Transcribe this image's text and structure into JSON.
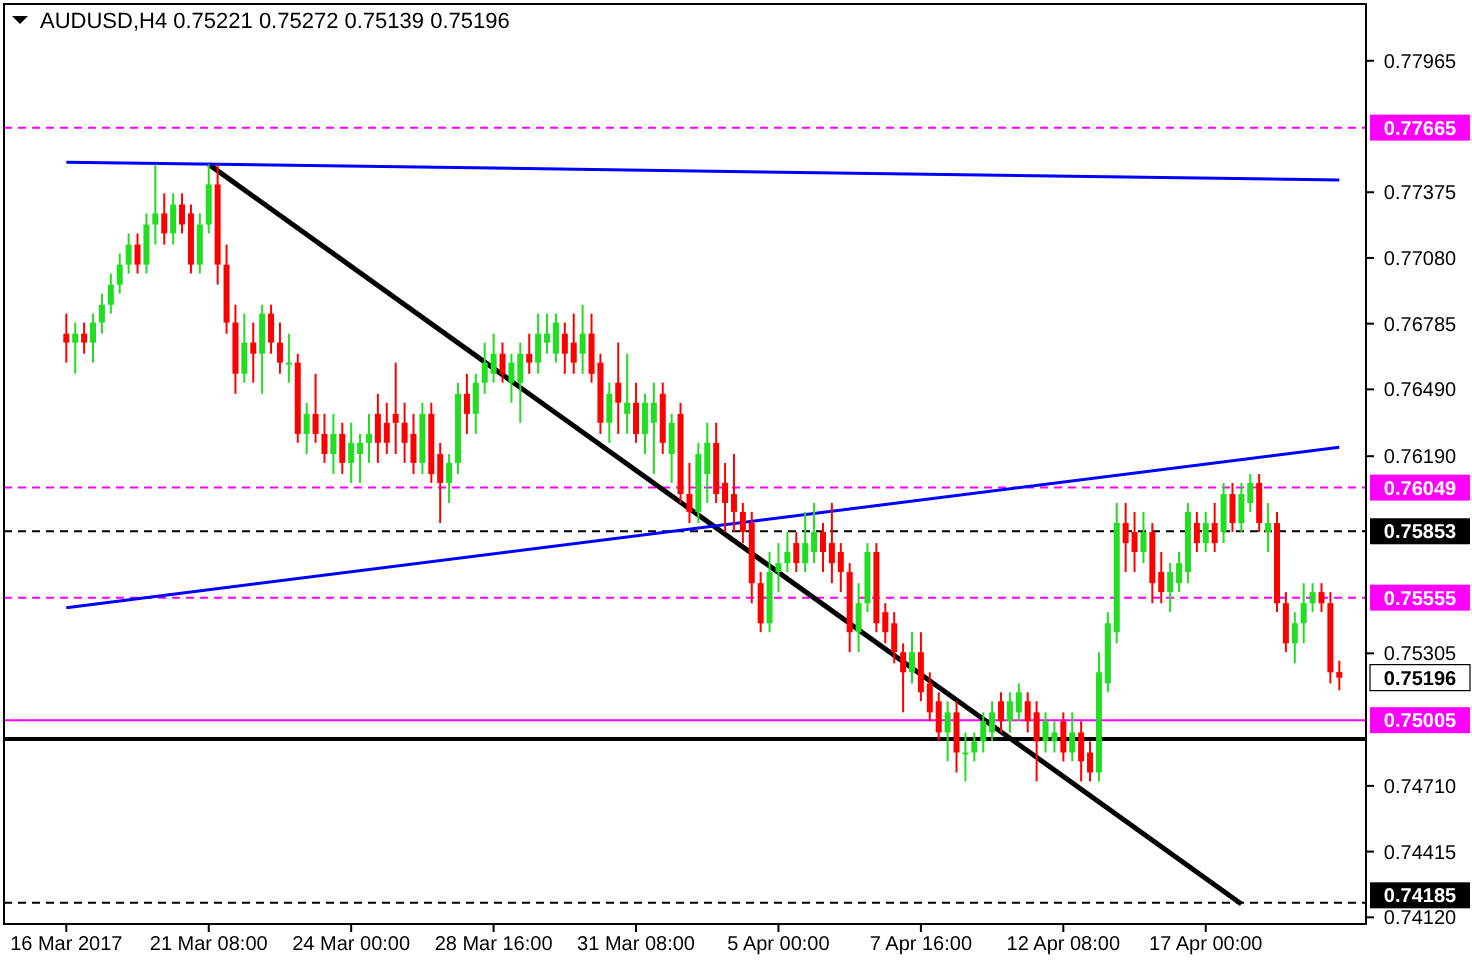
{
  "chart_data": {
    "type": "candlestick",
    "title": "AUDUSD,H4 0.75221 0.75272 0.75139 0.75196",
    "categories": [
      "16 Mar 2017",
      null,
      null,
      null,
      null,
      null,
      null,
      null,
      null,
      null,
      null,
      null,
      null,
      null,
      null,
      null,
      "21 Mar 08:00",
      null,
      null,
      null,
      null,
      null,
      null,
      null,
      null,
      null,
      null,
      null,
      null,
      null,
      null,
      null,
      "24 Mar 00:00",
      null,
      null,
      null,
      null,
      null,
      null,
      null,
      null,
      null,
      null,
      null,
      null,
      null,
      null,
      null,
      "28 Mar 16:00",
      null,
      null,
      null,
      null,
      null,
      null,
      null,
      null,
      null,
      null,
      null,
      null,
      null,
      null,
      null,
      "31 Mar 08:00",
      null,
      null,
      null,
      null,
      null,
      null,
      null,
      null,
      null,
      null,
      null,
      null,
      null,
      null,
      null,
      "5 Apr 00:00",
      null,
      null,
      null,
      null,
      null,
      null,
      null,
      null,
      null,
      null,
      null,
      null,
      null,
      null,
      null,
      "7 Apr 16:00",
      null,
      null,
      null,
      null,
      null,
      null,
      null,
      null,
      null,
      null,
      null,
      null,
      null,
      null,
      null,
      "12 Apr 08:00",
      null,
      null,
      null,
      null,
      null,
      null,
      null,
      null,
      null,
      null,
      null,
      null,
      null,
      null,
      null,
      "17 Apr 00:00",
      null,
      null,
      null,
      null,
      null,
      null,
      null,
      null,
      null,
      null,
      null,
      null,
      null,
      null,
      null
    ],
    "ohlc": [
      [
        0.7674,
        0.7683,
        0.7661,
        0.767
      ],
      [
        0.767,
        0.7679,
        0.7656,
        0.7674
      ],
      [
        0.7674,
        0.7679,
        0.7665,
        0.767
      ],
      [
        0.767,
        0.7683,
        0.7661,
        0.7679
      ],
      [
        0.7679,
        0.7692,
        0.7674,
        0.7687
      ],
      [
        0.7687,
        0.7701,
        0.7683,
        0.7696
      ],
      [
        0.7696,
        0.771,
        0.7692,
        0.7705
      ],
      [
        0.7705,
        0.7719,
        0.7701,
        0.7714
      ],
      [
        0.7714,
        0.7719,
        0.7701,
        0.7705
      ],
      [
        0.7705,
        0.7728,
        0.7701,
        0.7723
      ],
      [
        0.7723,
        0.775,
        0.7714,
        0.7728
      ],
      [
        0.7728,
        0.7737,
        0.7714,
        0.7719
      ],
      [
        0.7719,
        0.7737,
        0.7714,
        0.7732
      ],
      [
        0.7732,
        0.7737,
        0.7719,
        0.7723
      ],
      [
        0.7728,
        0.7732,
        0.7701,
        0.7705
      ],
      [
        0.7705,
        0.7728,
        0.7701,
        0.7723
      ],
      [
        0.7723,
        0.775,
        0.7719,
        0.7741
      ],
      [
        0.7741,
        0.775,
        0.7696,
        0.7705
      ],
      [
        0.7705,
        0.7714,
        0.7674,
        0.7679
      ],
      [
        0.7679,
        0.7687,
        0.7647,
        0.7656
      ],
      [
        0.7656,
        0.7683,
        0.7652,
        0.767
      ],
      [
        0.767,
        0.7679,
        0.7652,
        0.7665
      ],
      [
        0.7665,
        0.7687,
        0.7647,
        0.7683
      ],
      [
        0.7683,
        0.7687,
        0.7665,
        0.767
      ],
      [
        0.767,
        0.7679,
        0.7656,
        0.7661
      ],
      [
        0.7661,
        0.7674,
        0.7652,
        0.7661
      ],
      [
        0.7661,
        0.7665,
        0.7625,
        0.7629
      ],
      [
        0.7629,
        0.7643,
        0.762,
        0.7638
      ],
      [
        0.7638,
        0.7656,
        0.7625,
        0.7629
      ],
      [
        0.7629,
        0.7638,
        0.7616,
        0.762
      ],
      [
        0.762,
        0.7638,
        0.7611,
        0.7629
      ],
      [
        0.7629,
        0.7634,
        0.7611,
        0.7616
      ],
      [
        0.7616,
        0.7634,
        0.7607,
        0.7625
      ],
      [
        0.762,
        0.7629,
        0.7607,
        0.7625
      ],
      [
        0.7625,
        0.7638,
        0.7616,
        0.7629
      ],
      [
        0.7638,
        0.7647,
        0.7616,
        0.7625
      ],
      [
        0.7634,
        0.7643,
        0.762,
        0.7625
      ],
      [
        0.7638,
        0.7661,
        0.762,
        0.7634
      ],
      [
        0.7634,
        0.7643,
        0.7616,
        0.7625
      ],
      [
        0.7629,
        0.7638,
        0.7611,
        0.7616
      ],
      [
        0.7616,
        0.7643,
        0.7611,
        0.7638
      ],
      [
        0.7638,
        0.7643,
        0.7607,
        0.7611
      ],
      [
        0.762,
        0.7625,
        0.7589,
        0.7607
      ],
      [
        0.7607,
        0.762,
        0.7598,
        0.7616
      ],
      [
        0.7616,
        0.7652,
        0.7611,
        0.7647
      ],
      [
        0.7647,
        0.7656,
        0.7629,
        0.7638
      ],
      [
        0.7638,
        0.7656,
        0.7629,
        0.7652
      ],
      [
        0.7652,
        0.767,
        0.7647,
        0.7661
      ],
      [
        0.7656,
        0.7674,
        0.7652,
        0.7665
      ],
      [
        0.7665,
        0.767,
        0.7652,
        0.7656
      ],
      [
        0.7652,
        0.7665,
        0.7643,
        0.7661
      ],
      [
        0.7652,
        0.767,
        0.7634,
        0.7665
      ],
      [
        0.7665,
        0.7674,
        0.7656,
        0.7661
      ],
      [
        0.7661,
        0.7683,
        0.7656,
        0.7674
      ],
      [
        0.767,
        0.7683,
        0.7665,
        0.7674
      ],
      [
        0.7665,
        0.7683,
        0.7661,
        0.7679
      ],
      [
        0.7674,
        0.7679,
        0.7656,
        0.7665
      ],
      [
        0.767,
        0.7683,
        0.7656,
        0.7661
      ],
      [
        0.7665,
        0.7687,
        0.7656,
        0.7674
      ],
      [
        0.7674,
        0.7683,
        0.7652,
        0.7656
      ],
      [
        0.7661,
        0.7665,
        0.7629,
        0.7634
      ],
      [
        0.7634,
        0.7652,
        0.7625,
        0.7647
      ],
      [
        0.7652,
        0.767,
        0.7629,
        0.7643
      ],
      [
        0.7638,
        0.7665,
        0.7629,
        0.7643
      ],
      [
        0.7643,
        0.7652,
        0.7625,
        0.7629
      ],
      [
        0.7629,
        0.7647,
        0.762,
        0.7643
      ],
      [
        0.7634,
        0.7652,
        0.7611,
        0.7643
      ],
      [
        0.7647,
        0.7652,
        0.762,
        0.7625
      ],
      [
        0.762,
        0.7638,
        0.7607,
        0.7634
      ],
      [
        0.7638,
        0.7643,
        0.7598,
        0.7602
      ],
      [
        0.7602,
        0.7616,
        0.7589,
        0.7594
      ],
      [
        0.7594,
        0.7625,
        0.7589,
        0.762
      ],
      [
        0.7611,
        0.7634,
        0.7598,
        0.7625
      ],
      [
        0.7625,
        0.7634,
        0.7598,
        0.7602
      ],
      [
        0.7607,
        0.7616,
        0.7585,
        0.7598
      ],
      [
        0.7602,
        0.762,
        0.7585,
        0.7594
      ],
      [
        0.7594,
        0.7598,
        0.758,
        0.7585
      ],
      [
        0.7589,
        0.7594,
        0.7553,
        0.7562
      ],
      [
        0.7562,
        0.7567,
        0.754,
        0.7544
      ],
      [
        0.7544,
        0.7576,
        0.754,
        0.7567
      ],
      [
        0.7567,
        0.758,
        0.7558,
        0.7571
      ],
      [
        0.7571,
        0.7585,
        0.7567,
        0.7576
      ],
      [
        0.758,
        0.7585,
        0.7567,
        0.7571
      ],
      [
        0.7571,
        0.7594,
        0.7567,
        0.758
      ],
      [
        0.7576,
        0.7598,
        0.7571,
        0.7585
      ],
      [
        0.7585,
        0.7589,
        0.7567,
        0.7576
      ],
      [
        0.758,
        0.7598,
        0.7562,
        0.7571
      ],
      [
        0.7576,
        0.758,
        0.7558,
        0.7567
      ],
      [
        0.7567,
        0.7571,
        0.7531,
        0.754
      ],
      [
        0.754,
        0.7562,
        0.7531,
        0.7553
      ],
      [
        0.7553,
        0.758,
        0.7549,
        0.7576
      ],
      [
        0.7576,
        0.758,
        0.754,
        0.7544
      ],
      [
        0.7549,
        0.7553,
        0.7535,
        0.754
      ],
      [
        0.7544,
        0.7549,
        0.7526,
        0.7531
      ],
      [
        0.7531,
        0.7535,
        0.7504,
        0.7522
      ],
      [
        0.7522,
        0.754,
        0.7517,
        0.7531
      ],
      [
        0.7531,
        0.754,
        0.7509,
        0.7513
      ],
      [
        0.7517,
        0.7522,
        0.75,
        0.7504
      ],
      [
        0.7509,
        0.7513,
        0.7491,
        0.7495
      ],
      [
        0.7495,
        0.7509,
        0.7482,
        0.7504
      ],
      [
        0.7504,
        0.7509,
        0.7477,
        0.7486
      ],
      [
        0.7486,
        0.7495,
        0.7473,
        0.7486
      ],
      [
        0.7486,
        0.7495,
        0.7482,
        0.7491
      ],
      [
        0.7491,
        0.7504,
        0.7486,
        0.75
      ],
      [
        0.7495,
        0.7509,
        0.7491,
        0.7504
      ],
      [
        0.7509,
        0.7513,
        0.7495,
        0.75
      ],
      [
        0.75,
        0.7513,
        0.7495,
        0.7509
      ],
      [
        0.7504,
        0.7517,
        0.75,
        0.7513
      ],
      [
        0.7509,
        0.7513,
        0.7495,
        0.75
      ],
      [
        0.7504,
        0.7509,
        0.7473,
        0.7491
      ],
      [
        0.7491,
        0.7504,
        0.7486,
        0.75
      ],
      [
        0.7491,
        0.75,
        0.7486,
        0.7495
      ],
      [
        0.75,
        0.7504,
        0.7482,
        0.7486
      ],
      [
        0.7486,
        0.7504,
        0.7482,
        0.7495
      ],
      [
        0.7495,
        0.75,
        0.7473,
        0.7482
      ],
      [
        0.7486,
        0.7491,
        0.7473,
        0.7477
      ],
      [
        0.7477,
        0.7531,
        0.7473,
        0.7522
      ],
      [
        0.7517,
        0.7549,
        0.7513,
        0.7544
      ],
      [
        0.754,
        0.7598,
        0.7535,
        0.7589
      ],
      [
        0.7589,
        0.7598,
        0.7567,
        0.758
      ],
      [
        0.7585,
        0.7594,
        0.7567,
        0.7576
      ],
      [
        0.7576,
        0.7594,
        0.7571,
        0.7585
      ],
      [
        0.7585,
        0.7589,
        0.7553,
        0.7562
      ],
      [
        0.7567,
        0.7576,
        0.7553,
        0.7558
      ],
      [
        0.7558,
        0.7571,
        0.7549,
        0.7567
      ],
      [
        0.7562,
        0.7576,
        0.7558,
        0.7571
      ],
      [
        0.7567,
        0.7598,
        0.7562,
        0.7594
      ],
      [
        0.7589,
        0.7594,
        0.7576,
        0.758
      ],
      [
        0.758,
        0.7594,
        0.7576,
        0.7589
      ],
      [
        0.7589,
        0.7598,
        0.7576,
        0.758
      ],
      [
        0.7585,
        0.7607,
        0.758,
        0.7602
      ],
      [
        0.7602,
        0.7607,
        0.7585,
        0.7589
      ],
      [
        0.7589,
        0.7607,
        0.7585,
        0.7602
      ],
      [
        0.7598,
        0.7611,
        0.7594,
        0.7607
      ],
      [
        0.7607,
        0.7611,
        0.7585,
        0.7589
      ],
      [
        0.7585,
        0.7598,
        0.7576,
        0.7589
      ],
      [
        0.7589,
        0.7594,
        0.7549,
        0.7553
      ],
      [
        0.7553,
        0.7558,
        0.7531,
        0.7535
      ],
      [
        0.7535,
        0.7549,
        0.7526,
        0.7544
      ],
      [
        0.7544,
        0.7562,
        0.7535,
        0.7553
      ],
      [
        0.7553,
        0.7562,
        0.7549,
        0.7558
      ],
      [
        0.7558,
        0.7562,
        0.7549,
        0.7553
      ],
      [
        0.7553,
        0.7558,
        0.7517,
        0.7522
      ],
      [
        0.75221,
        0.75272,
        0.75139,
        0.75196
      ]
    ],
    "series": [
      {
        "type": "line",
        "values": [
          null,
          null,
          null,
          null,
          null,
          null,
          null,
          null,
          null,
          null,
          null,
          null,
          null,
          null,
          null,
          null,
          0.775,
          null,
          null,
          null,
          null,
          null,
          null,
          null,
          null,
          null,
          null,
          null,
          null,
          null,
          null,
          null,
          null,
          null,
          null,
          null,
          null,
          null,
          null,
          null,
          null,
          null,
          null,
          null,
          null,
          null,
          null,
          null,
          null,
          null,
          null,
          null,
          null,
          null,
          null,
          null,
          null,
          null,
          null,
          null,
          null,
          null,
          null,
          null,
          null,
          null,
          null,
          null,
          null,
          null,
          null,
          null,
          null,
          null,
          null,
          null,
          null,
          null,
          null,
          null,
          null,
          null,
          null,
          null,
          null,
          null,
          null,
          null,
          null,
          null,
          null,
          null,
          null,
          null,
          null,
          null,
          null,
          null,
          null,
          null,
          null,
          null,
          null,
          null,
          null,
          null,
          null,
          null,
          null,
          null,
          null,
          null,
          null,
          null,
          null,
          null,
          null,
          null,
          null,
          null,
          null,
          null,
          null,
          null,
          null,
          null,
          null,
          null,
          null,
          null,
          null,
          null,
          0.7418,
          null,
          null,
          null,
          null,
          null,
          null,
          null,
          null,
          null,
          null,
          null
        ],
        "color": "#000000"
      },
      {
        "type": "line",
        "values": [
          0.7751,
          null,
          null,
          null,
          null,
          null,
          null,
          null,
          null,
          null,
          null,
          null,
          null,
          null,
          null,
          null,
          null,
          null,
          null,
          null,
          null,
          null,
          null,
          null,
          null,
          null,
          null,
          null,
          null,
          null,
          null,
          null,
          null,
          null,
          null,
          null,
          null,
          null,
          null,
          null,
          null,
          null,
          null,
          null,
          null,
          null,
          null,
          null,
          null,
          null,
          null,
          null,
          null,
          null,
          null,
          null,
          null,
          null,
          null,
          null,
          null,
          null,
          null,
          null,
          null,
          null,
          null,
          null,
          null,
          null,
          null,
          null,
          null,
          null,
          null,
          null,
          null,
          null,
          null,
          null,
          null,
          null,
          null,
          null,
          null,
          null,
          null,
          null,
          null,
          null,
          null,
          null,
          null,
          null,
          null,
          null,
          null,
          null,
          null,
          null,
          null,
          null,
          null,
          null,
          null,
          null,
          null,
          null,
          null,
          null,
          null,
          null,
          null,
          null,
          null,
          null,
          null,
          null,
          null,
          null,
          null,
          null,
          null,
          null,
          null,
          null,
          null,
          null,
          null,
          null,
          null,
          null,
          null,
          null,
          null,
          null,
          null,
          null,
          null,
          null,
          null,
          null,
          null,
          0.7743
        ],
        "color": "#0000ff"
      },
      {
        "type": "line",
        "values": [
          0.7551,
          null,
          null,
          null,
          null,
          null,
          null,
          null,
          null,
          null,
          null,
          null,
          null,
          null,
          null,
          null,
          null,
          null,
          null,
          null,
          null,
          null,
          null,
          null,
          null,
          null,
          null,
          null,
          null,
          null,
          null,
          null,
          null,
          null,
          null,
          null,
          null,
          null,
          null,
          null,
          null,
          null,
          null,
          null,
          null,
          null,
          null,
          null,
          null,
          null,
          null,
          null,
          null,
          null,
          null,
          null,
          null,
          null,
          null,
          null,
          null,
          null,
          null,
          null,
          null,
          null,
          null,
          null,
          null,
          null,
          null,
          null,
          null,
          null,
          null,
          null,
          null,
          null,
          null,
          null,
          null,
          null,
          null,
          null,
          null,
          null,
          null,
          null,
          null,
          null,
          null,
          null,
          null,
          null,
          null,
          null,
          null,
          null,
          null,
          null,
          null,
          null,
          null,
          null,
          null,
          null,
          null,
          null,
          null,
          null,
          null,
          null,
          null,
          null,
          null,
          null,
          null,
          null,
          null,
          null,
          null,
          null,
          null,
          null,
          null,
          null,
          null,
          null,
          null,
          null,
          null,
          null,
          null,
          null,
          null,
          null,
          null,
          null,
          null,
          null,
          null,
          null,
          null,
          0.7623
        ],
        "color": "#0000ff"
      }
    ],
    "annotations": [
      "0.75196"
    ],
    "ylim": [
      0.7409,
      0.7822
    ],
    "yticks": [
      {
        "value": 0.77965,
        "label": "0.77965"
      },
      {
        "value": 0.77375,
        "label": "0.77375"
      },
      {
        "value": 0.7708,
        "label": "0.77080"
      },
      {
        "value": 0.76785,
        "label": "0.76785"
      },
      {
        "value": 0.7649,
        "label": "0.76490"
      },
      {
        "value": 0.7619,
        "label": "0.76190"
      },
      {
        "value": 0.75305,
        "label": "0.75305"
      },
      {
        "value": 0.7471,
        "label": "0.74710"
      },
      {
        "value": 0.74415,
        "label": "0.74415"
      },
      {
        "value": 0.7412,
        "label": "0.74120"
      }
    ],
    "ref_lines": [
      {
        "axis": "y",
        "value": 0.77665,
        "label": "0.77665",
        "color": "#ff00ff",
        "line_style": "dashed"
      },
      {
        "axis": "y",
        "value": 0.76049,
        "label": "0.76049",
        "color": "#ff00ff",
        "line_style": "dashed"
      },
      {
        "axis": "y",
        "value": 0.75853,
        "label": "0.75853",
        "color": "#000000",
        "line_style": "dashed"
      },
      {
        "axis": "y",
        "value": 0.75555,
        "label": "0.75555",
        "color": "#ff00ff",
        "line_style": "dashed"
      },
      {
        "axis": "y",
        "value": 0.75005,
        "label": "0.75005",
        "color": "#ff00ff",
        "line_style": "solid"
      },
      {
        "axis": "y",
        "value": 0.7492,
        "label": null,
        "color": "#000000",
        "line_style": "solid"
      },
      {
        "axis": "y",
        "value": 0.74185,
        "label": "0.74185",
        "color": "#000000",
        "line_style": "dashed"
      }
    ],
    "grid": false
  }
}
